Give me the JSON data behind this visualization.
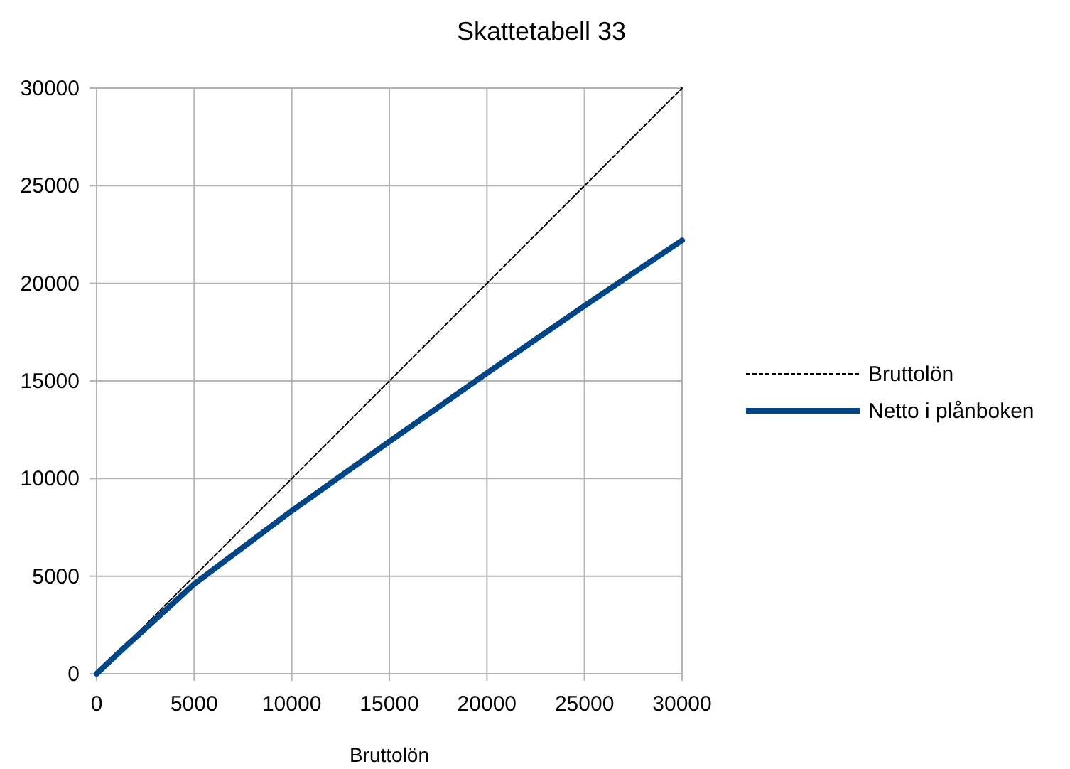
{
  "chart_data": {
    "type": "line",
    "title": "Skattetabell 33",
    "xlabel": "Bruttolön",
    "xlim": [
      0,
      30000
    ],
    "xticks": [
      0,
      5000,
      10000,
      15000,
      20000,
      25000,
      30000
    ],
    "ylim": [
      0,
      30000
    ],
    "yticks": [
      0,
      5000,
      10000,
      15000,
      20000,
      25000,
      30000
    ],
    "grid": true,
    "legend": "right",
    "series": [
      {
        "name": "Bruttolön",
        "color": "#000000",
        "line_style": "dashed",
        "x": [
          0,
          30000
        ],
        "values": [
          0,
          30000
        ]
      },
      {
        "name": "Netto i plånboken",
        "color": "#004586",
        "line_style": "solid",
        "x": [
          0,
          1000,
          5000,
          10000,
          15000,
          20000,
          25000,
          30000
        ],
        "values": [
          0,
          950,
          4600,
          8350,
          11900,
          15400,
          18850,
          22200
        ]
      }
    ]
  }
}
